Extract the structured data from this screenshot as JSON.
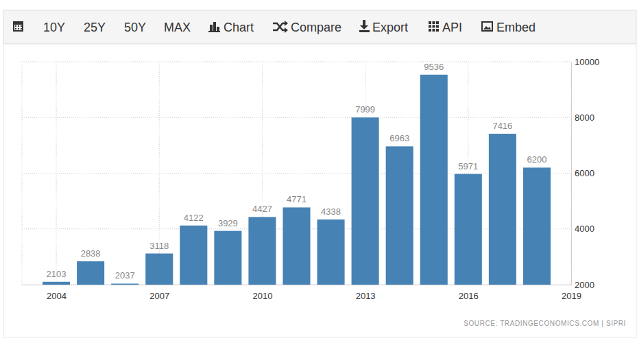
{
  "toolbar": [
    "10Y",
    "25Y",
    "50Y",
    "MAX",
    "Chart",
    "Compare",
    "Export",
    "API",
    "Embed"
  ],
  "chart_data": {
    "type": "bar",
    "x": [
      2004,
      2005,
      2006,
      2007,
      2008,
      2009,
      2010,
      2011,
      2012,
      2013,
      2014,
      2015,
      2016,
      2017,
      2018
    ],
    "values": [
      2103,
      2838,
      2037,
      3118,
      4122,
      3929,
      4427,
      4771,
      4338,
      7999,
      6963,
      9536,
      5971,
      7416,
      6200
    ],
    "color": "#4682b4",
    "xlim": [
      2003,
      2019
    ],
    "xticks": [
      2004,
      2007,
      2010,
      2013,
      2016,
      2019
    ],
    "ylim": [
      2000,
      10000
    ],
    "yticks": [
      2000,
      4000,
      6000,
      8000,
      10000
    ],
    "grid": true,
    "data_labels": true,
    "annotations": [
      "SOURCE: TRADINGECONOMICS.COM | SIPRI"
    ]
  }
}
